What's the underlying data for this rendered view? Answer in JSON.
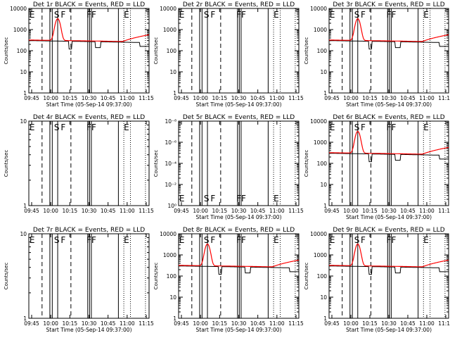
{
  "chart_data": [
    {
      "id": "d1",
      "title": "Det 1r BLACK = Events, RED = LLD",
      "ylabel": "Counts/sec",
      "xlabel": "Start Time (05-Sep-14 09:37:00)",
      "xticks": [
        "09:45",
        "10:00",
        "10:15",
        "10:30",
        "10:45",
        "11:00",
        "11:15"
      ],
      "yticks": [
        "1",
        "10",
        "100",
        "1000",
        "10000"
      ],
      "annotations": [
        "E",
        "S",
        "F",
        "FF",
        "E"
      ],
      "has_data": true,
      "peak": 3000
    },
    {
      "id": "d2",
      "title": "Det 2r BLACK = Events, RED = LLD",
      "ylabel": "Counts/sec",
      "xlabel": "Start Time (05-Sep-14 09:37:00)",
      "xticks": [
        "09:45",
        "10:00",
        "10:15",
        "10:30",
        "10:45",
        "11:00",
        "11:15"
      ],
      "yticks": [
        "1",
        "10",
        "100",
        "1000",
        "10000"
      ],
      "annotations": [
        "E",
        "S",
        "F",
        "FF",
        "E"
      ],
      "has_data": false
    },
    {
      "id": "d3",
      "title": "Det 3r BLACK = Events, RED = LLD",
      "ylabel": "Counts/sec",
      "xlabel": "Start Time (05-Sep-14 09:37:00)",
      "xticks": [
        "09:45",
        "10:00",
        "10:15",
        "10:30",
        "10:45",
        "11:00",
        "11:15"
      ],
      "yticks": [
        "1",
        "10",
        "100",
        "1000",
        "10000"
      ],
      "annotations": [
        "E",
        "S",
        "F",
        "FF",
        "E"
      ],
      "has_data": true,
      "peak": 3000
    },
    {
      "id": "d4",
      "title": "Det 4r BLACK = Events, RED = LLD",
      "ylabel": "Counts/sec",
      "xlabel": "",
      "xticks": [
        "09:45",
        "10:00",
        "10:15",
        "10:30",
        "10:45",
        "11:00",
        "11:15"
      ],
      "yticks": [
        "1",
        "10"
      ],
      "annotations": [
        "E",
        "S",
        "F",
        "FF",
        "E"
      ],
      "has_data": false
    },
    {
      "id": "d5",
      "title": "Det 5r BLACK = Events, RED = LLD",
      "ylabel": "Counts/sec",
      "xlabel": "Start Time (05-Sep-14 09:37:00)",
      "xticks": [
        "09:45",
        "10:00",
        "10:15",
        "10:30",
        "10:45",
        "11:00",
        "11:15"
      ],
      "yticks": [
        "10⁰",
        "10⁻²",
        "10⁻⁴",
        "10⁻⁶",
        "10⁻⁸"
      ],
      "annotations": [
        "E",
        "S",
        "F",
        "FF",
        "E"
      ],
      "has_data": false
    },
    {
      "id": "d6",
      "title": "Det 6r BLACK = Events, RED = LLD",
      "ylabel": "Counts/sec",
      "xlabel": "Start Time (05-Sep-14 09:37:00)",
      "xticks": [
        "09:45",
        "10:00",
        "10:15",
        "10:30",
        "10:45",
        "11:00",
        "11:15"
      ],
      "yticks": [
        "1",
        "10",
        "100",
        "1000",
        "10000"
      ],
      "annotations": [
        "E",
        "S",
        "F",
        "FF",
        "E"
      ],
      "has_data": true,
      "peak": 3000
    },
    {
      "id": "d7",
      "title": "Det 7r BLACK = Events, RED = LLD",
      "ylabel": "Counts/sec",
      "xlabel": "Start Time (05-Sep-14 09:37:00)",
      "xticks": [
        "09:45",
        "10:00",
        "10:15",
        "10:30",
        "10:45",
        "11:00",
        "11:15"
      ],
      "yticks": [
        "1",
        "10"
      ],
      "annotations": [
        "E",
        "S",
        "F",
        "FF",
        "E"
      ],
      "has_data": false
    },
    {
      "id": "d8",
      "title": "Det 8r BLACK = Events, RED = LLD",
      "ylabel": "Counts/sec",
      "xlabel": "Start Time (05-Sep-14 09:37:00)",
      "xticks": [
        "09:45",
        "10:00",
        "10:15",
        "10:30",
        "10:45",
        "11:00",
        "11:15"
      ],
      "yticks": [
        "1",
        "10",
        "100",
        "1000",
        "10000"
      ],
      "annotations": [
        "E",
        "S",
        "F",
        "FF",
        "E"
      ],
      "has_data": true,
      "peak": 3000
    },
    {
      "id": "d9",
      "title": "Det 9r BLACK = Events, RED = LLD",
      "ylabel": "Counts/sec",
      "xlabel": "Start Time (05-Sep-14 09:37:00)",
      "xticks": [
        "09:45",
        "10:00",
        "10:15",
        "10:30",
        "10:45",
        "11:00",
        "11:15"
      ],
      "yticks": [
        "1",
        "10",
        "100",
        "1000",
        "10000"
      ],
      "annotations": [
        "E",
        "S",
        "F",
        "FF",
        "E"
      ],
      "has_data": true,
      "peak": 3000
    }
  ],
  "colors": {
    "events": "#000000",
    "lld": "#ff0000"
  }
}
